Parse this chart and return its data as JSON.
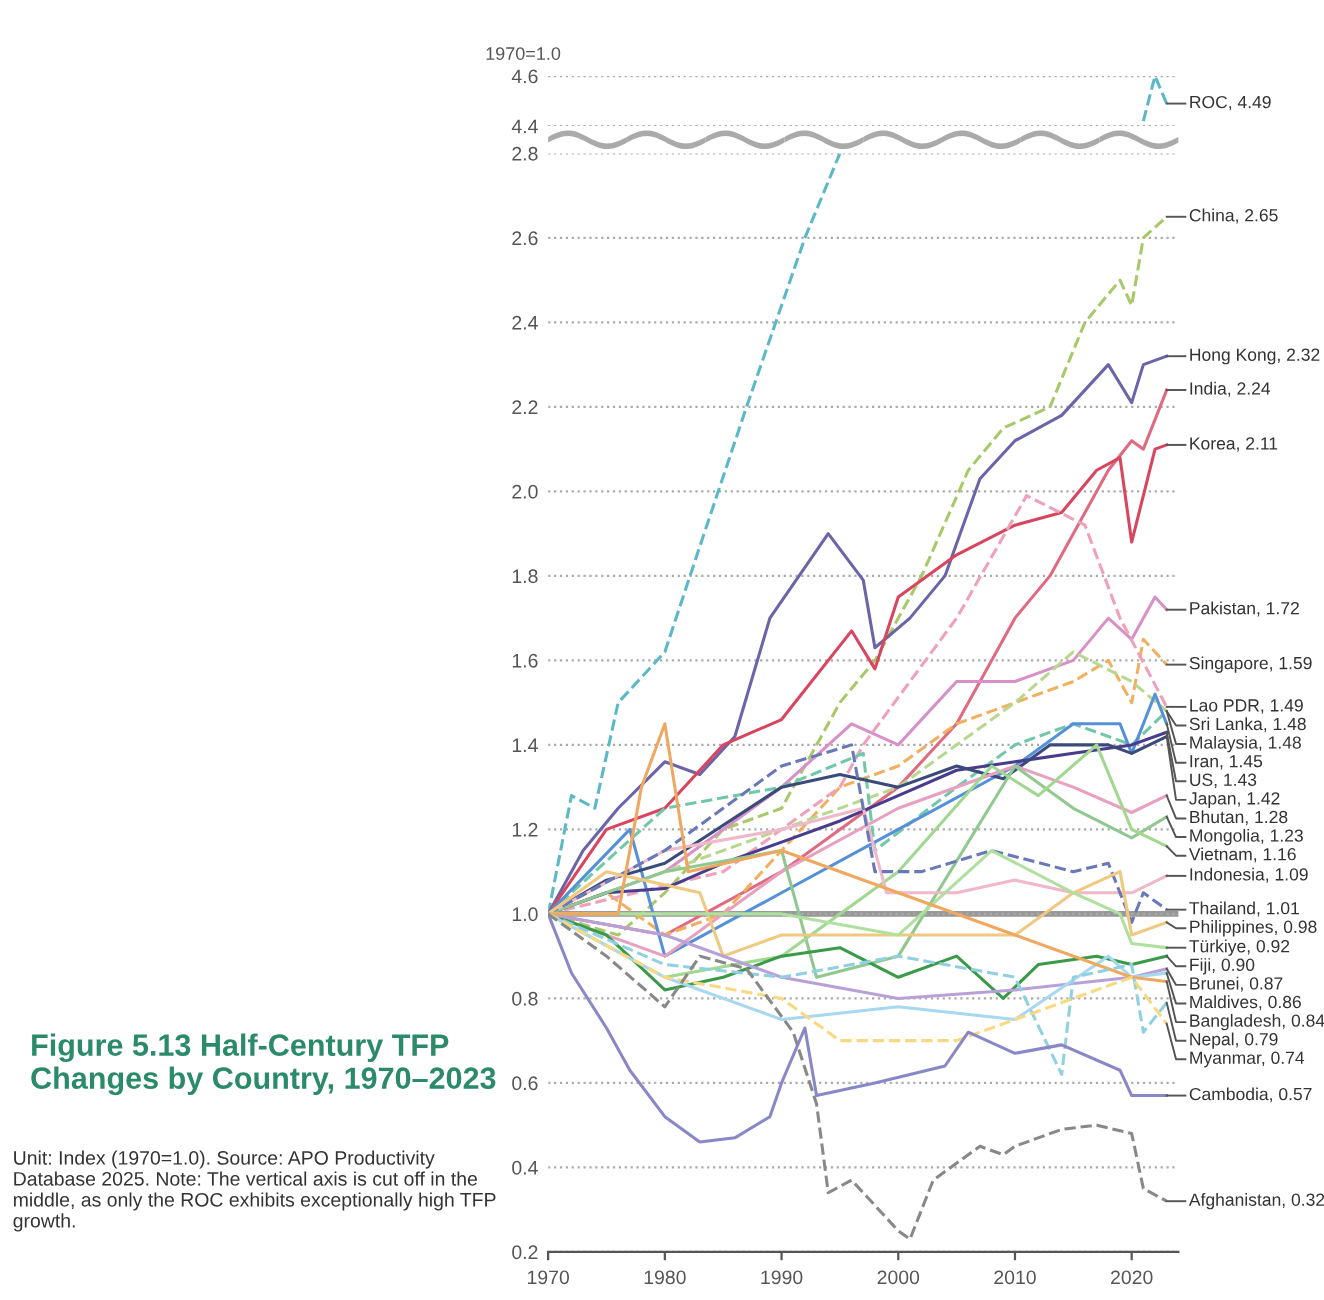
{
  "chart_data": [
    {
      "type": "line",
      "ylabel": "1970=1.0",
      "xlim": [
        1970,
        2024
      ],
      "ylim": [
        4.4,
        4.6
      ],
      "yticks": [
        4.4,
        4.6
      ],
      "grid": "y",
      "tick_labels": "y",
      "series": [
        {
          "name": "ROC, 4.49",
          "color": "#5ab8c8",
          "line_style": "dashed",
          "x": [
            2021,
            2022,
            2023
          ],
          "values": [
            4.42,
            4.6,
            4.49
          ]
        }
      ]
    },
    {
      "type": "line",
      "title": "Figure 5.13 Half-Century TFP Changes by Country, 1970–2023",
      "annotations": [
        "Unit: Index (1970=1.0). Source: APO Productivity Database 2025. Note: The vertical axis is cut off in the middle, as only the ROC exhibits exceptionally high TFP growth."
      ],
      "xlim": [
        1970,
        2024
      ],
      "xticks": [
        1970,
        1980,
        1990,
        2000,
        2010,
        2020
      ],
      "ylim": [
        0.2,
        2.8
      ],
      "yticks": [
        0.2,
        0.4,
        0.6,
        0.8,
        {
          "value": 1,
          "label": "1.0"
        },
        1.2,
        1.4,
        1.6,
        1.8,
        {
          "value": 2,
          "label": "2.0"
        },
        2.2,
        2.4,
        2.6,
        2.8
      ],
      "grid": "y",
      "ref_lines": [
        {
          "axis": "y",
          "value": 1.0,
          "color": "#999999"
        }
      ],
      "series": [
        {
          "color": "#5ab8c8",
          "line_style": "dashed",
          "x": [
            1970,
            1972,
            1974,
            1976,
            1980,
            1983,
            1987,
            1992,
            1995
          ],
          "values": [
            1.0,
            1.28,
            1.25,
            1.5,
            1.62,
            1.87,
            2.2,
            2.6,
            2.8
          ]
        },
        {
          "name": "China, 2.65",
          "color": "#a8c96a",
          "line_style": "dashed",
          "x": [
            1970,
            1976,
            1980,
            1985,
            1990,
            1995,
            1998,
            2002,
            2006,
            2009,
            2013,
            2016,
            2019,
            2020,
            2021,
            2023
          ],
          "values": [
            1.0,
            0.95,
            1.05,
            1.2,
            1.25,
            1.5,
            1.6,
            1.8,
            2.05,
            2.15,
            2.2,
            2.4,
            2.5,
            2.44,
            2.6,
            2.65
          ]
        },
        {
          "name": "Hong Kong, 2.32",
          "color": "#6a64a8",
          "x": [
            1970,
            1973,
            1976,
            1980,
            1983,
            1986,
            1989,
            1994,
            1997,
            1998,
            2001,
            2004,
            2007,
            2010,
            2014,
            2018,
            2020,
            2021,
            2023
          ],
          "values": [
            1.0,
            1.15,
            1.25,
            1.36,
            1.33,
            1.42,
            1.7,
            1.9,
            1.79,
            1.63,
            1.7,
            1.8,
            2.03,
            2.12,
            2.18,
            2.3,
            2.21,
            2.3,
            2.32
          ]
        },
        {
          "name": "India, 2.24",
          "color": "#e06a80",
          "x": [
            1970,
            1980,
            1990,
            2000,
            2005,
            2008,
            2010,
            2013,
            2016,
            2018,
            2020,
            2021,
            2023
          ],
          "values": [
            1.0,
            0.95,
            1.1,
            1.3,
            1.45,
            1.6,
            1.7,
            1.8,
            1.95,
            2.05,
            2.12,
            2.1,
            2.24
          ]
        },
        {
          "name": "Korea, 2.11",
          "color": "#d9455f",
          "x": [
            1970,
            1975,
            1980,
            1985,
            1990,
            1996,
            1998,
            2000,
            2005,
            2010,
            2014,
            2017,
            2019,
            2020,
            2022,
            2023
          ],
          "values": [
            1.0,
            1.2,
            1.25,
            1.4,
            1.46,
            1.67,
            1.58,
            1.75,
            1.85,
            1.92,
            1.95,
            2.05,
            2.08,
            1.88,
            2.1,
            2.11
          ]
        },
        {
          "name": "Pakistan, 1.72",
          "color": "#d890c8",
          "x": [
            1970,
            1980,
            1990,
            1996,
            2000,
            2005,
            2010,
            2015,
            2018,
            2020,
            2022,
            2023
          ],
          "values": [
            1.0,
            1.1,
            1.3,
            1.45,
            1.4,
            1.55,
            1.55,
            1.6,
            1.7,
            1.65,
            1.75,
            1.72
          ]
        },
        {
          "name": "Singapore, 1.59",
          "color": "#f0b060",
          "line_style": "dashed",
          "x": [
            1970,
            1975,
            1980,
            1985,
            1990,
            1995,
            2000,
            2005,
            2010,
            2015,
            2018,
            2020,
            2021,
            2023
          ],
          "values": [
            1.0,
            1.05,
            0.95,
            1.0,
            1.15,
            1.3,
            1.35,
            1.45,
            1.5,
            1.55,
            1.6,
            1.5,
            1.65,
            1.59
          ]
        },
        {
          "name": "Lao PDR, 1.49",
          "color": "#f0a0b8",
          "line_style": "dashed",
          "x": [
            1970,
            1985,
            1995,
            1997,
            2005,
            2011,
            2016,
            2019,
            2023
          ],
          "values": [
            1.0,
            1.1,
            1.3,
            1.4,
            1.7,
            1.99,
            1.92,
            1.7,
            1.49
          ]
        },
        {
          "name": "Sri Lanka, 1.48",
          "color": "#b8d890",
          "line_style": "dashed",
          "x": [
            1970,
            1980,
            1990,
            2000,
            2010,
            2015,
            2020,
            2023
          ],
          "values": [
            1.0,
            1.1,
            1.2,
            1.3,
            1.5,
            1.62,
            1.55,
            1.48
          ]
        },
        {
          "name": "Malaysia, 1.48",
          "color": "#70c8a8",
          "line_style": "dashed",
          "x": [
            1970,
            1980,
            1990,
            1997,
            1998,
            2005,
            2010,
            2015,
            2020,
            2023
          ],
          "values": [
            1.0,
            1.25,
            1.3,
            1.38,
            1.15,
            1.3,
            1.4,
            1.45,
            1.4,
            1.48
          ]
        },
        {
          "name": "Iran, 1.45",
          "color": "#5590d8",
          "x": [
            1970,
            1977,
            1980,
            1990,
            2000,
            2010,
            2015,
            2019,
            2020,
            2022,
            2023
          ],
          "values": [
            1.0,
            1.2,
            0.9,
            1.05,
            1.2,
            1.35,
            1.45,
            1.45,
            1.38,
            1.52,
            1.45
          ]
        },
        {
          "name": "US, 1.43",
          "color": "#4a3c8c",
          "x": [
            1970,
            1975,
            1980,
            1985,
            1990,
            1995,
            2000,
            2005,
            2010,
            2015,
            2020,
            2023
          ],
          "values": [
            1.0,
            1.05,
            1.06,
            1.12,
            1.17,
            1.22,
            1.28,
            1.34,
            1.36,
            1.38,
            1.4,
            1.43
          ]
        },
        {
          "name": "Japan, 1.42",
          "color": "#3a4a7a",
          "x": [
            1970,
            1975,
            1980,
            1990,
            1995,
            2000,
            2005,
            2009,
            2013,
            2018,
            2020,
            2023
          ],
          "values": [
            1.0,
            1.08,
            1.12,
            1.3,
            1.33,
            1.3,
            1.35,
            1.32,
            1.4,
            1.4,
            1.38,
            1.42
          ]
        },
        {
          "name": "Bhutan, 1.28",
          "color": "#e8a0c0",
          "x": [
            1970,
            1980,
            1990,
            2000,
            2010,
            2015,
            2020,
            2023
          ],
          "values": [
            1.0,
            0.9,
            1.1,
            1.25,
            1.35,
            1.3,
            1.24,
            1.28
          ]
        },
        {
          "name": "Mongolia, 1.23",
          "color": "#90c890",
          "x": [
            1970,
            1980,
            1990,
            1993,
            2000,
            2010,
            2015,
            2020,
            2023
          ],
          "values": [
            1.0,
            1.1,
            1.15,
            0.85,
            0.9,
            1.35,
            1.25,
            1.18,
            1.23
          ]
        },
        {
          "name": "Vietnam, 1.16",
          "color": "#a0d890",
          "x": [
            1970,
            1980,
            1990,
            2000,
            2008,
            2012,
            2017,
            2020,
            2023
          ],
          "values": [
            1.0,
            0.85,
            0.9,
            1.1,
            1.35,
            1.28,
            1.4,
            1.2,
            1.16
          ]
        },
        {
          "name": "Indonesia, 1.09",
          "color": "#f0b8c8",
          "x": [
            1970,
            1980,
            1990,
            1997,
            1999,
            2005,
            2010,
            2015,
            2020,
            2023
          ],
          "values": [
            1.0,
            1.15,
            1.2,
            1.25,
            1.05,
            1.05,
            1.08,
            1.05,
            1.05,
            1.09
          ]
        },
        {
          "name": "Thailand, 1.01",
          "color": "#6878b8",
          "line_style": "dashed",
          "x": [
            1970,
            1980,
            1990,
            1996,
            1998,
            2002,
            2008,
            2015,
            2018,
            2020,
            2021,
            2023
          ],
          "values": [
            1.0,
            1.15,
            1.35,
            1.4,
            1.1,
            1.1,
            1.15,
            1.1,
            1.12,
            0.98,
            1.05,
            1.01
          ]
        },
        {
          "name": "Philippines, 0.98",
          "color": "#f0c880",
          "x": [
            1970,
            1975,
            1983,
            1985,
            1990,
            2000,
            2010,
            2015,
            2019,
            2020,
            2023
          ],
          "values": [
            1.0,
            1.1,
            1.05,
            0.9,
            0.95,
            0.95,
            0.95,
            1.05,
            1.1,
            0.95,
            0.98
          ]
        },
        {
          "name": "Türkiye, 0.92",
          "color": "#b0e0a0",
          "x": [
            1970,
            1980,
            1990,
            2000,
            2008,
            2015,
            2019,
            2020,
            2023
          ],
          "values": [
            1.0,
            1.0,
            1.0,
            0.95,
            1.15,
            1.05,
            1.0,
            0.93,
            0.92
          ]
        },
        {
          "name": "Fiji, 0.90",
          "color": "#3a9a4a",
          "x": [
            1970,
            1975,
            1980,
            1985,
            1990,
            1995,
            2000,
            2005,
            2009,
            2012,
            2017,
            2020,
            2023
          ],
          "values": [
            1.0,
            0.95,
            0.82,
            0.85,
            0.9,
            0.92,
            0.85,
            0.9,
            0.8,
            0.88,
            0.9,
            0.88,
            0.9
          ]
        },
        {
          "name": "Brunei, 0.87",
          "color": "#b8a0d8",
          "x": [
            1970,
            1980,
            1990,
            2000,
            2010,
            2020,
            2023
          ],
          "values": [
            1.0,
            0.95,
            0.85,
            0.8,
            0.82,
            0.85,
            0.87
          ]
        },
        {
          "name": "Maldives, 0.86",
          "color": "#a8d8f0",
          "x": [
            1970,
            1980,
            1990,
            2000,
            2010,
            2018,
            2020,
            2023
          ],
          "values": [
            1.0,
            0.85,
            0.75,
            0.78,
            0.75,
            0.9,
            0.85,
            0.86
          ]
        },
        {
          "name": "Bangladesh, 0.84",
          "color": "#f0a860",
          "x": [
            1970,
            1976,
            1978,
            1980,
            1982,
            1990,
            2000,
            2010,
            2020,
            2023
          ],
          "values": [
            1.0,
            1.0,
            1.3,
            1.45,
            1.1,
            1.15,
            1.05,
            0.95,
            0.85,
            0.84
          ]
        },
        {
          "name": "Nepal, 0.79",
          "color": "#90d0e0",
          "line_style": "dashed",
          "x": [
            1970,
            1980,
            1990,
            2000,
            2010,
            2014,
            2015,
            2020,
            2021,
            2023
          ],
          "values": [
            1.0,
            0.88,
            0.85,
            0.9,
            0.85,
            0.62,
            0.85,
            0.88,
            0.72,
            0.79
          ]
        },
        {
          "name": "Myanmar, 0.74",
          "color": "#f8d880",
          "line_style": "dashed",
          "x": [
            1970,
            1980,
            1990,
            1995,
            2005,
            2010,
            2015,
            2020,
            2023
          ],
          "values": [
            1.0,
            0.85,
            0.8,
            0.7,
            0.7,
            0.75,
            0.8,
            0.85,
            0.74
          ]
        },
        {
          "name": "Cambodia, 0.57",
          "color": "#8888c8",
          "x": [
            1970,
            1972,
            1975,
            1977,
            1980,
            1983,
            1986,
            1989,
            1990,
            1992,
            1993,
            1998,
            2004,
            2006,
            2010,
            2014,
            2019,
            2020,
            2023
          ],
          "values": [
            1.0,
            0.86,
            0.73,
            0.63,
            0.52,
            0.46,
            0.47,
            0.52,
            0.6,
            0.73,
            0.57,
            0.6,
            0.64,
            0.72,
            0.67,
            0.69,
            0.63,
            0.57,
            0.57
          ]
        },
        {
          "name": "Afghanistan, 0.32",
          "color": "#888888",
          "line_style": "dashed",
          "x": [
            1970,
            1975,
            1980,
            1983,
            1987,
            1991,
            1993,
            1994,
            1996,
            2000,
            2001,
            2003,
            2007,
            2009,
            2010,
            2014,
            2017,
            2020,
            2021,
            2023
          ],
          "values": [
            1.0,
            0.9,
            0.78,
            0.9,
            0.87,
            0.72,
            0.55,
            0.34,
            0.37,
            0.25,
            0.23,
            0.37,
            0.45,
            0.43,
            0.45,
            0.49,
            0.5,
            0.48,
            0.35,
            0.32
          ]
        }
      ]
    }
  ]
}
